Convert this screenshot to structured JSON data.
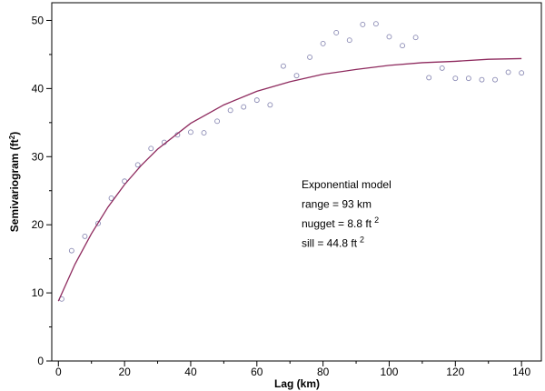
{
  "chart_data": {
    "type": "scatter",
    "xlabel": "Lag (km)",
    "ylabel": {
      "text": "Semivariogram (ft",
      "sup": "2",
      "end": ")"
    },
    "xlim": [
      -2,
      146
    ],
    "ylim": [
      0,
      52.6
    ],
    "xticks": [
      0,
      20,
      40,
      60,
      80,
      100,
      120,
      140
    ],
    "yticks": [
      0,
      10,
      20,
      30,
      40,
      50
    ],
    "xminorticks": [
      10,
      30,
      50,
      70,
      90,
      110,
      130
    ],
    "yminorticks": [
      5,
      15,
      25,
      35,
      45
    ],
    "annotations": [
      {
        "text": "Exponential model"
      },
      {
        "text": "range = 93 km"
      },
      {
        "text": "nugget = 8.8 ft",
        "sup": "2"
      },
      {
        "text": "sill = 44.8 ft",
        "sup": "2"
      }
    ],
    "series": [
      {
        "type": "scatter",
        "color": "#8a8ab4",
        "x": [
          1,
          4,
          8,
          12,
          16,
          20,
          24,
          28,
          32,
          36,
          40,
          44,
          48,
          52,
          56,
          60,
          64,
          68,
          72,
          76,
          80,
          84,
          88,
          92,
          96,
          100,
          104,
          108,
          112,
          116,
          120,
          124,
          128,
          132,
          136,
          140
        ],
        "values": [
          9.1,
          16.2,
          18.3,
          20.2,
          23.9,
          26.4,
          28.8,
          31.2,
          32.1,
          33.2,
          33.6,
          33.5,
          35.2,
          36.8,
          37.3,
          38.3,
          37.6,
          43.3,
          41.9,
          44.6,
          46.6,
          48.2,
          47.1,
          49.4,
          49.5,
          47.6,
          46.3,
          47.5,
          41.6,
          43.0,
          41.5,
          41.5,
          41.3,
          41.3,
          42.4,
          42.3
        ]
      },
      {
        "type": "line",
        "color": "#8e2a5e",
        "x": [
          0,
          5,
          10,
          15,
          20,
          25,
          30,
          40,
          50,
          60,
          70,
          80,
          90,
          100,
          110,
          120,
          130,
          140
        ],
        "values": [
          8.8,
          14.2,
          18.7,
          22.6,
          25.9,
          28.7,
          31.1,
          34.9,
          37.6,
          39.6,
          41.0,
          42.1,
          42.8,
          43.4,
          43.8,
          44.0,
          44.3,
          44.4
        ]
      }
    ]
  }
}
